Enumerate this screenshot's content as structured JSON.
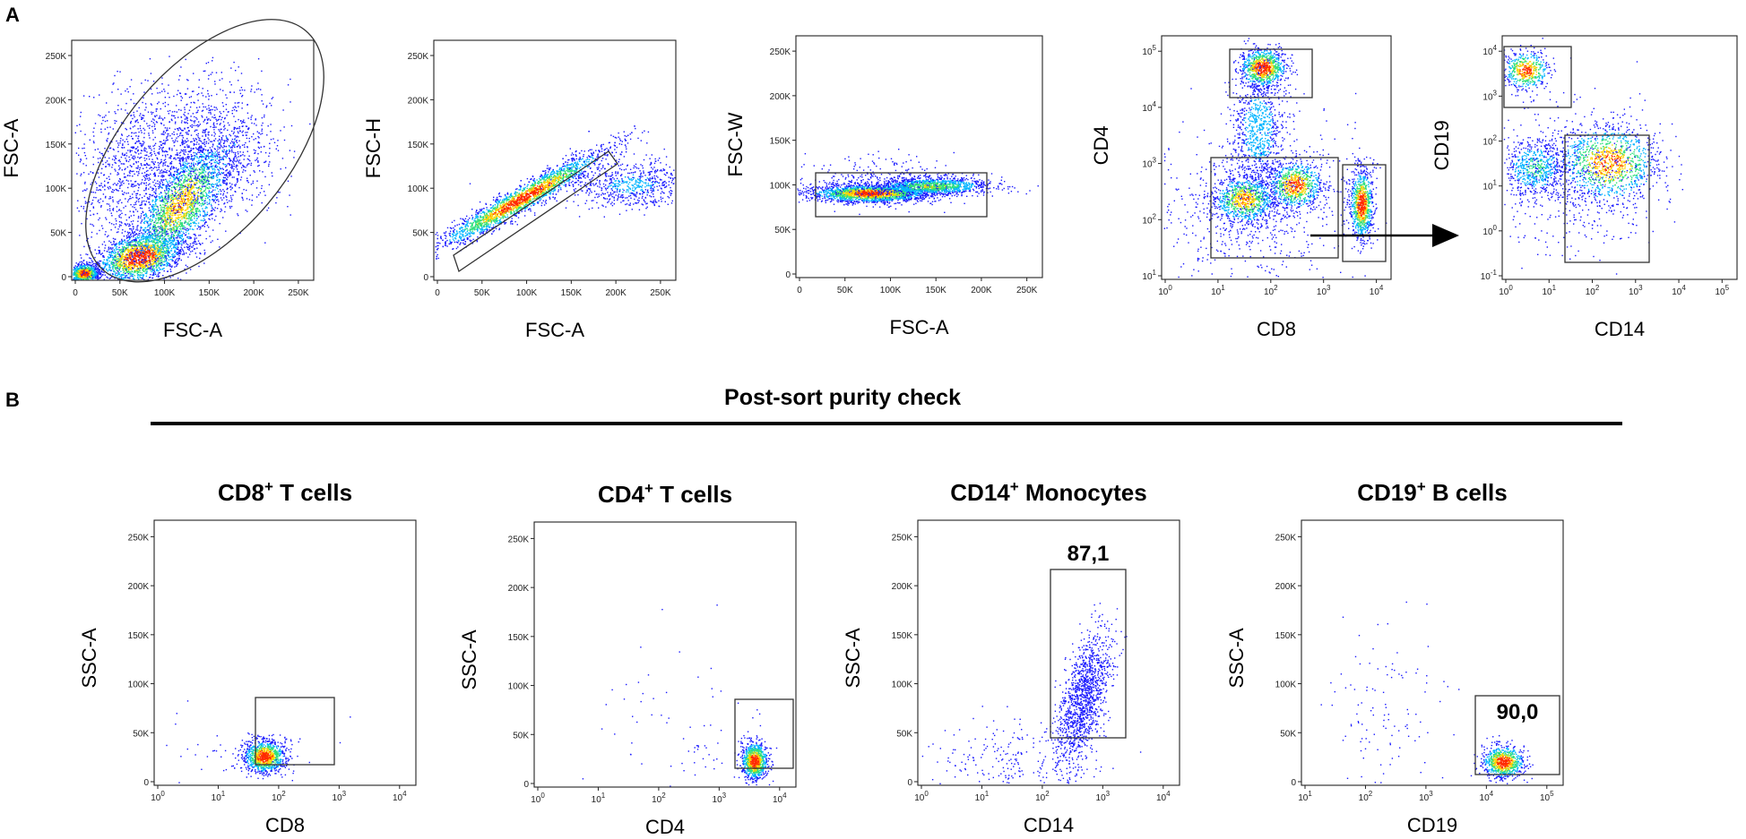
{
  "figure": {
    "panel_a_label": "A",
    "panel_b_label": "B",
    "purity_title": "Post-sort purity check"
  },
  "colors": {
    "low": "#1a1aff",
    "mid_low": "#00b4ff",
    "mid": "#2ee07a",
    "mid_high": "#ffd400",
    "high": "#ff2a00",
    "gate": "#333333"
  },
  "panel_a": [
    {
      "id": "a1",
      "xlabel": "FSC-A",
      "ylabel": "FSC-A",
      "x_ticks": [
        "0",
        "50K",
        "100K",
        "150K",
        "200K",
        "250K"
      ],
      "y_ticks": [
        "0",
        "50K",
        "100K",
        "150K",
        "200K",
        "250K"
      ],
      "gate": "ellipse"
    },
    {
      "id": "a2",
      "xlabel": "FSC-A",
      "ylabel": "FSC-H",
      "x_ticks": [
        "0",
        "50K",
        "100K",
        "150K",
        "200K",
        "250K"
      ],
      "y_ticks": [
        "0",
        "50K",
        "100K",
        "150K",
        "200K",
        "250K"
      ],
      "gate": "diagonal-rectangle"
    },
    {
      "id": "a3",
      "xlabel": "FSC-A",
      "ylabel": "FSC-W",
      "x_ticks": [
        "0",
        "50K",
        "100K",
        "150K",
        "200K",
        "250K"
      ],
      "y_ticks": [
        "0",
        "50K",
        "100K",
        "150K",
        "200K",
        "250K"
      ],
      "gate": "rectangle"
    },
    {
      "id": "a4",
      "xlabel": "CD8",
      "ylabel": "CD4",
      "x_ticks": [
        "10^0",
        "10^1",
        "10^2",
        "10^3",
        "10^4"
      ],
      "y_ticks": [
        "10^1",
        "10^2",
        "10^3",
        "10^4",
        "10^5"
      ],
      "gate": "three-rectangles"
    },
    {
      "id": "a5",
      "xlabel": "CD14",
      "ylabel": "CD19",
      "x_ticks": [
        "10^0",
        "10^1",
        "10^2",
        "10^3",
        "10^4",
        "10^5"
      ],
      "y_ticks": [
        "10^-1",
        "10^0",
        "10^1",
        "10^2",
        "10^3",
        "10^4"
      ],
      "gate": "two-rectangles"
    }
  ],
  "panel_b": [
    {
      "id": "b1",
      "title_main": "CD8",
      "title_sup": "+",
      "title_rest": " T cells",
      "xlabel": "CD8",
      "ylabel": "SSC-A",
      "x_ticks": [
        "10^0",
        "10^1",
        "10^2",
        "10^3",
        "10^4"
      ],
      "y_ticks": [
        "0",
        "50K",
        "100K",
        "150K",
        "200K",
        "250K"
      ],
      "gate_value": ""
    },
    {
      "id": "b2",
      "title_main": "CD4",
      "title_sup": "+",
      "title_rest": " T cells",
      "xlabel": "CD4",
      "ylabel": "SSC-A",
      "x_ticks": [
        "10^0",
        "10^1",
        "10^2",
        "10^3",
        "10^4"
      ],
      "y_ticks": [
        "0",
        "50K",
        "100K",
        "150K",
        "200K",
        "250K"
      ],
      "gate_value": ""
    },
    {
      "id": "b3",
      "title_main": "CD14",
      "title_sup": "+",
      "title_rest": " Monocytes",
      "xlabel": "CD14",
      "ylabel": "SSC-A",
      "x_ticks": [
        "10^0",
        "10^1",
        "10^2",
        "10^3",
        "10^4"
      ],
      "y_ticks": [
        "0",
        "50K",
        "100K",
        "150K",
        "200K",
        "250K"
      ],
      "gate_value": "87,1"
    },
    {
      "id": "b4",
      "title_main": "CD19",
      "title_sup": "+",
      "title_rest": " B cells",
      "xlabel": "CD19",
      "ylabel": "SSC-A",
      "x_ticks": [
        "10^1",
        "10^2",
        "10^3",
        "10^4",
        "10^5"
      ],
      "y_ticks": [
        "0",
        "50K",
        "100K",
        "150K",
        "200K",
        "250K"
      ],
      "gate_value": "90,0"
    }
  ]
}
